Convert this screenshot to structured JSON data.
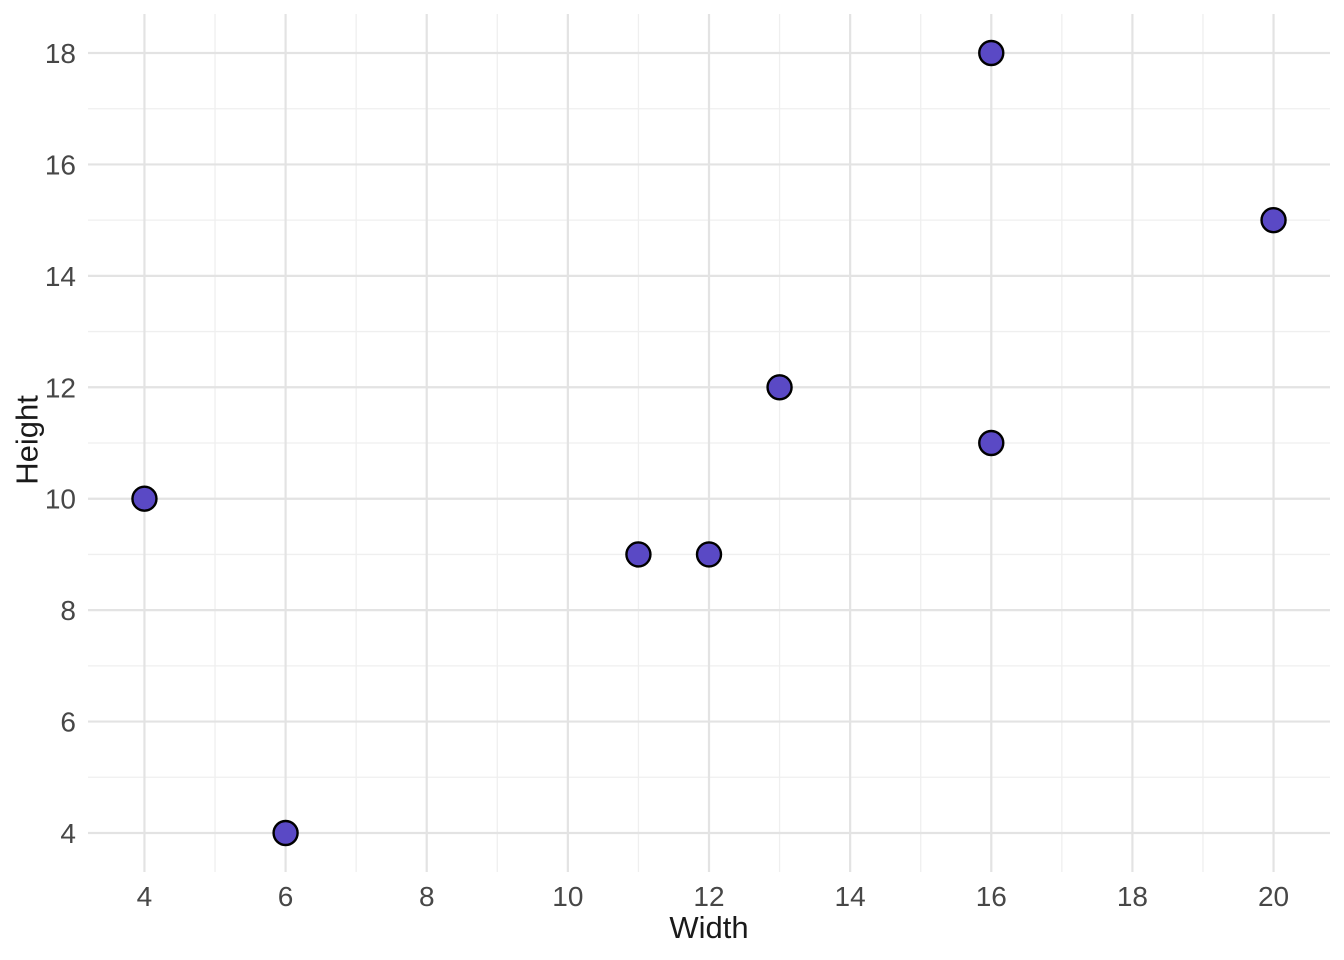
{
  "figure": {
    "background": "#ffffff"
  },
  "chart_data": {
    "type": "scatter",
    "title": "",
    "xlabel": "Width",
    "ylabel": "Height",
    "x_ticks": [
      4,
      6,
      8,
      10,
      12,
      14,
      16,
      18,
      20
    ],
    "y_ticks": [
      4,
      6,
      8,
      10,
      12,
      14,
      16,
      18
    ],
    "x_minor": [
      5,
      7,
      9,
      11,
      13,
      15,
      17,
      19
    ],
    "y_minor": [
      5,
      7,
      9,
      11,
      13,
      15,
      17
    ],
    "xlim": [
      3.2,
      20.8
    ],
    "ylim": [
      3.3,
      18.7
    ],
    "grid": true,
    "legend": "none",
    "points": [
      {
        "x": 4,
        "y": 10
      },
      {
        "x": 6,
        "y": 4
      },
      {
        "x": 11,
        "y": 9
      },
      {
        "x": 12,
        "y": 9
      },
      {
        "x": 13,
        "y": 12
      },
      {
        "x": 16,
        "y": 11
      },
      {
        "x": 16,
        "y": 18
      },
      {
        "x": 20,
        "y": 15
      }
    ],
    "style": {
      "point_fill": "#5A49C5",
      "point_stroke": "#000000",
      "point_radius": 12,
      "point_stroke_width": 2.4,
      "major_grid_color": "#E3E3E3",
      "minor_grid_color": "#EFEFEF",
      "major_grid_width": 2.2,
      "minor_grid_width": 1.3,
      "tick_label_color": "#474747",
      "tick_label_size": 28,
      "axis_title_color": "#1a1a1a",
      "panel_background": "#FFFFFF"
    }
  }
}
